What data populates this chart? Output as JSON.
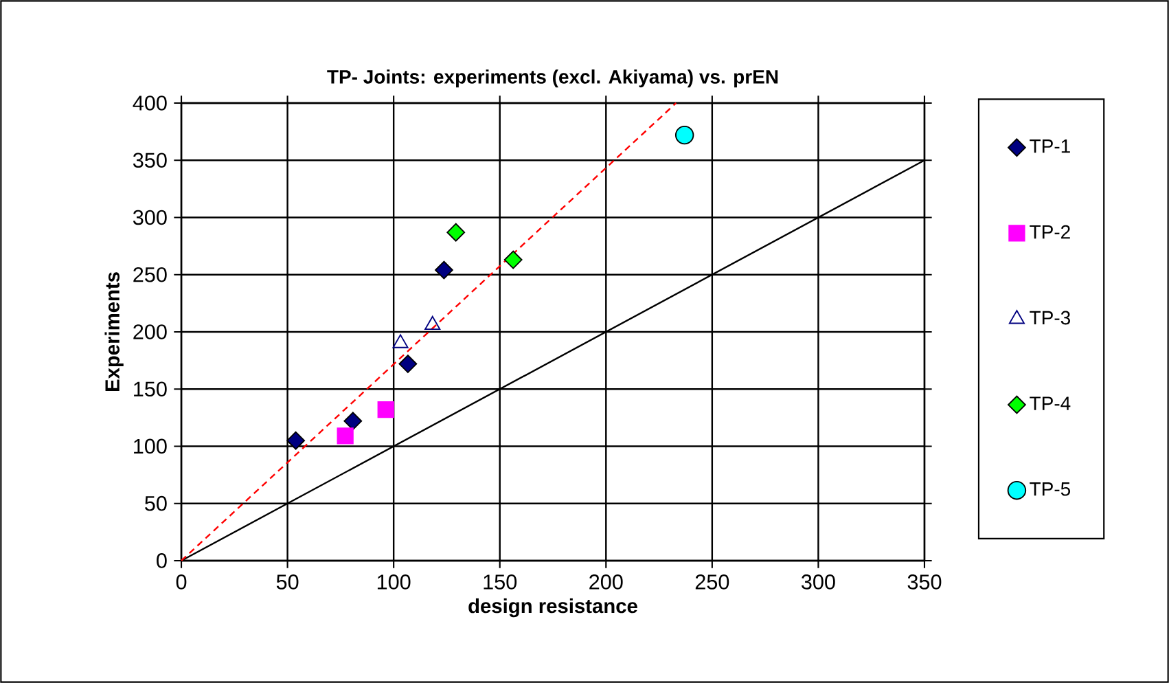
{
  "chart_data": {
    "type": "scatter",
    "title": "TP- Joints: experiments (excl. Akiyama) vs. prEN",
    "xlabel": "design resistance",
    "ylabel": "Experiments",
    "xlim": [
      0,
      350
    ],
    "ylim": [
      0,
      400
    ],
    "xticks": [
      0,
      50,
      100,
      150,
      200,
      250,
      300,
      350
    ],
    "yticks": [
      0,
      50,
      100,
      150,
      200,
      250,
      300,
      350,
      400
    ],
    "grid": true,
    "legend": "right",
    "series": [
      {
        "type": "line",
        "x": [
          0,
          350
        ],
        "values": [
          0,
          350
        ],
        "color": "#000000",
        "marker": "none",
        "line_style": "solid"
      },
      {
        "type": "line",
        "x": [
          0,
          233
        ],
        "values": [
          0,
          400
        ],
        "color": "#ff0000",
        "marker": "none",
        "line_style": "dashed"
      },
      {
        "name": "TP-1",
        "x": [
          53.9,
          80.8,
          106.7,
          123.7
        ],
        "values": [
          105,
          122,
          172,
          254
        ],
        "color": "#000080",
        "marker": "diamond"
      },
      {
        "name": "TP-2",
        "x": [
          77.2,
          96.3
        ],
        "values": [
          109,
          132
        ],
        "color": "#ff00ff",
        "marker": "square"
      },
      {
        "name": "TP-3",
        "x": [
          103.2,
          118.3
        ],
        "values": [
          190,
          206
        ],
        "color": "#000080",
        "marker": "triangle"
      },
      {
        "name": "TP-4",
        "x": [
          129.3,
          156.3
        ],
        "values": [
          287,
          263
        ],
        "color": "#00ff00",
        "marker": "diamond"
      },
      {
        "name": "TP-5",
        "x": [
          237
        ],
        "values": [
          372
        ],
        "color": "#00ffff",
        "marker": "circle"
      }
    ]
  }
}
